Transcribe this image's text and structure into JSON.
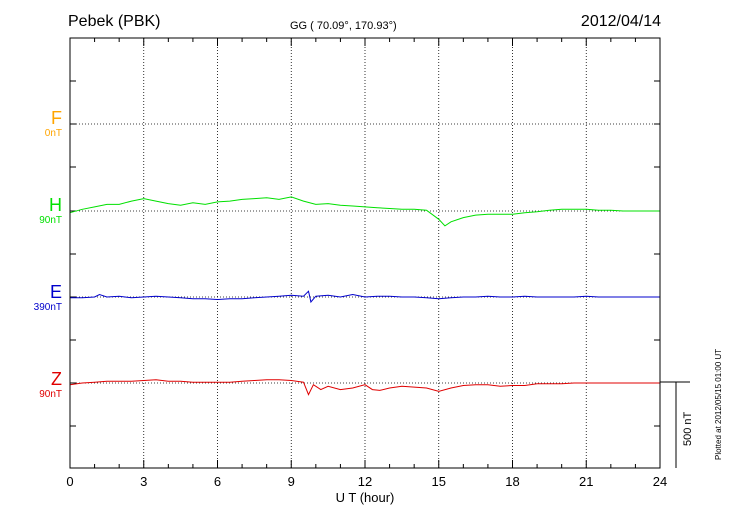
{
  "header": {
    "station": "Pebek (PBK)",
    "coords": "GG ( 70.09°, 170.93°)",
    "date": "2012/04/14"
  },
  "channels": [
    {
      "name": "F",
      "scale": "0nT",
      "color": "#ffa500"
    },
    {
      "name": "H",
      "scale": "90nT",
      "color": "#00e000"
    },
    {
      "name": "E",
      "scale": "390nT",
      "color": "#0000cc"
    },
    {
      "name": "Z",
      "scale": "90nT",
      "color": "#e00000"
    }
  ],
  "plotted": "Plotted at 2012/05/15 01:00 UT",
  "scale_bar": "500 nT",
  "chart_data": {
    "type": "line",
    "title": "Pebek (PBK)",
    "xlabel": "U T (hour)",
    "ylabel": "",
    "xlim": [
      0,
      24
    ],
    "x_ticks": [
      0,
      3,
      6,
      9,
      12,
      15,
      18,
      21,
      24
    ],
    "ylim_nT": [
      -350,
      2250
    ],
    "grid": true,
    "series": [
      {
        "name": "H",
        "color": "#00e000",
        "baseline": 1000,
        "x": [
          0,
          0.5,
          1,
          1.5,
          2,
          2.5,
          3,
          3.5,
          4,
          4.5,
          5,
          5.5,
          6,
          6.5,
          7,
          7.5,
          8,
          8.5,
          9,
          9.5,
          10,
          10.5,
          11,
          11.5,
          12,
          12.5,
          13,
          13.5,
          14,
          14.5,
          15,
          15.25,
          15.5,
          16,
          16.5,
          17,
          17.5,
          18,
          18.5,
          19,
          19.5,
          20,
          20.5,
          21,
          21.5,
          22,
          22.5,
          23,
          23.5,
          24
        ],
        "y": [
          -10,
          10,
          25,
          40,
          40,
          60,
          75,
          60,
          45,
          35,
          50,
          40,
          55,
          60,
          70,
          75,
          80,
          70,
          85,
          60,
          40,
          45,
          35,
          30,
          25,
          20,
          15,
          10,
          10,
          5,
          -50,
          -90,
          -65,
          -40,
          -25,
          -20,
          -20,
          -20,
          -10,
          -5,
          5,
          10,
          10,
          10,
          5,
          5,
          0,
          0,
          0,
          0
        ]
      },
      {
        "name": "E",
        "color": "#0000cc",
        "baseline": 1000,
        "x": [
          0,
          0.5,
          1,
          1.2,
          1.5,
          2,
          2.5,
          3,
          3.5,
          4,
          4.5,
          5,
          5.5,
          6,
          6.5,
          7,
          7.5,
          8,
          8.5,
          9,
          9.5,
          9.7,
          9.8,
          10,
          10.5,
          11,
          11.5,
          12,
          12.5,
          13,
          13.5,
          14,
          14.5,
          15,
          15.5,
          16,
          16.5,
          17,
          17.5,
          18,
          18.5,
          19,
          19.5,
          20,
          20.5,
          21,
          21.5,
          22,
          22.5,
          23,
          23.5,
          24
        ],
        "y": [
          -5,
          -5,
          0,
          15,
          0,
          5,
          -5,
          0,
          5,
          0,
          -5,
          -10,
          -10,
          -15,
          -10,
          -10,
          -5,
          0,
          5,
          10,
          5,
          35,
          -30,
          5,
          10,
          0,
          15,
          0,
          5,
          5,
          0,
          0,
          -5,
          -10,
          -5,
          0,
          0,
          5,
          0,
          0,
          5,
          0,
          0,
          0,
          0,
          5,
          0,
          0,
          0,
          0,
          0,
          0
        ]
      },
      {
        "name": "Z",
        "color": "#e00000",
        "baseline": 1000,
        "x": [
          0,
          0.5,
          1,
          1.5,
          2,
          2.5,
          3,
          3.5,
          4,
          4.5,
          5,
          5.5,
          6,
          6.5,
          7,
          7.5,
          8,
          8.5,
          9,
          9.5,
          9.7,
          9.9,
          10.2,
          10.5,
          11,
          11.5,
          12,
          12.3,
          12.6,
          13,
          13.5,
          14,
          14.5,
          15,
          15.5,
          16,
          16.5,
          17,
          17.5,
          18,
          18.5,
          19,
          19.5,
          20,
          20.5,
          21,
          21.5,
          22,
          22.5,
          23,
          23.5,
          24
        ],
        "y": [
          -10,
          0,
          5,
          10,
          10,
          10,
          15,
          20,
          10,
          10,
          5,
          5,
          5,
          5,
          10,
          15,
          20,
          20,
          15,
          5,
          -70,
          -10,
          -40,
          -20,
          -40,
          -30,
          -10,
          -40,
          -45,
          -30,
          -20,
          -25,
          -30,
          -50,
          -30,
          -15,
          -10,
          -10,
          -20,
          -15,
          -15,
          -5,
          -5,
          -5,
          0,
          0,
          0,
          0,
          0,
          0,
          0,
          0
        ]
      }
    ]
  }
}
